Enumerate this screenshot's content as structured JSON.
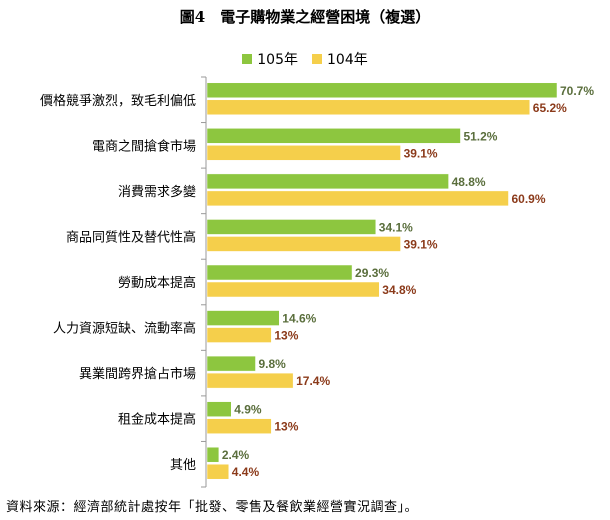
{
  "chart_data": {
    "type": "bar",
    "orientation": "horizontal",
    "title": "圖4　電子購物業之經營困境（複選）",
    "categories": [
      "價格競爭激烈，致毛利偏低",
      "電商之間搶食市場",
      "消費需求多變",
      "商品同質性及替代性高",
      "勞動成本提高",
      "人力資源短缺、流動率高",
      "異業間跨界搶占市場",
      "租金成本提高",
      "其他"
    ],
    "series": [
      {
        "name": "105年",
        "color": "#8dc63f",
        "values": [
          70.7,
          51.2,
          48.8,
          34.1,
          29.3,
          14.6,
          9.8,
          4.9,
          2.4
        ],
        "labels": [
          "70.7%",
          "51.2%",
          "48.8%",
          "34.1%",
          "29.3%",
          "14.6%",
          "9.8%",
          "4.9%",
          "2.4%"
        ],
        "label_color": "#5a6e3c"
      },
      {
        "name": "104年",
        "color": "#f5cf4b",
        "values": [
          65.2,
          39.1,
          60.9,
          39.1,
          34.8,
          13,
          17.4,
          13,
          4.4
        ],
        "labels": [
          "65.2%",
          "39.1%",
          "60.9%",
          "39.1%",
          "34.8%",
          "13%",
          "17.4%",
          "13%",
          "4.4%"
        ],
        "label_color": "#8b3a1a"
      }
    ],
    "xlim": [
      0,
      75
    ],
    "grid": false,
    "legend_position": "top-center"
  },
  "source_note": "資料來源：經濟部統計處按年「批發、零售及餐飲業經營實況調查」。"
}
